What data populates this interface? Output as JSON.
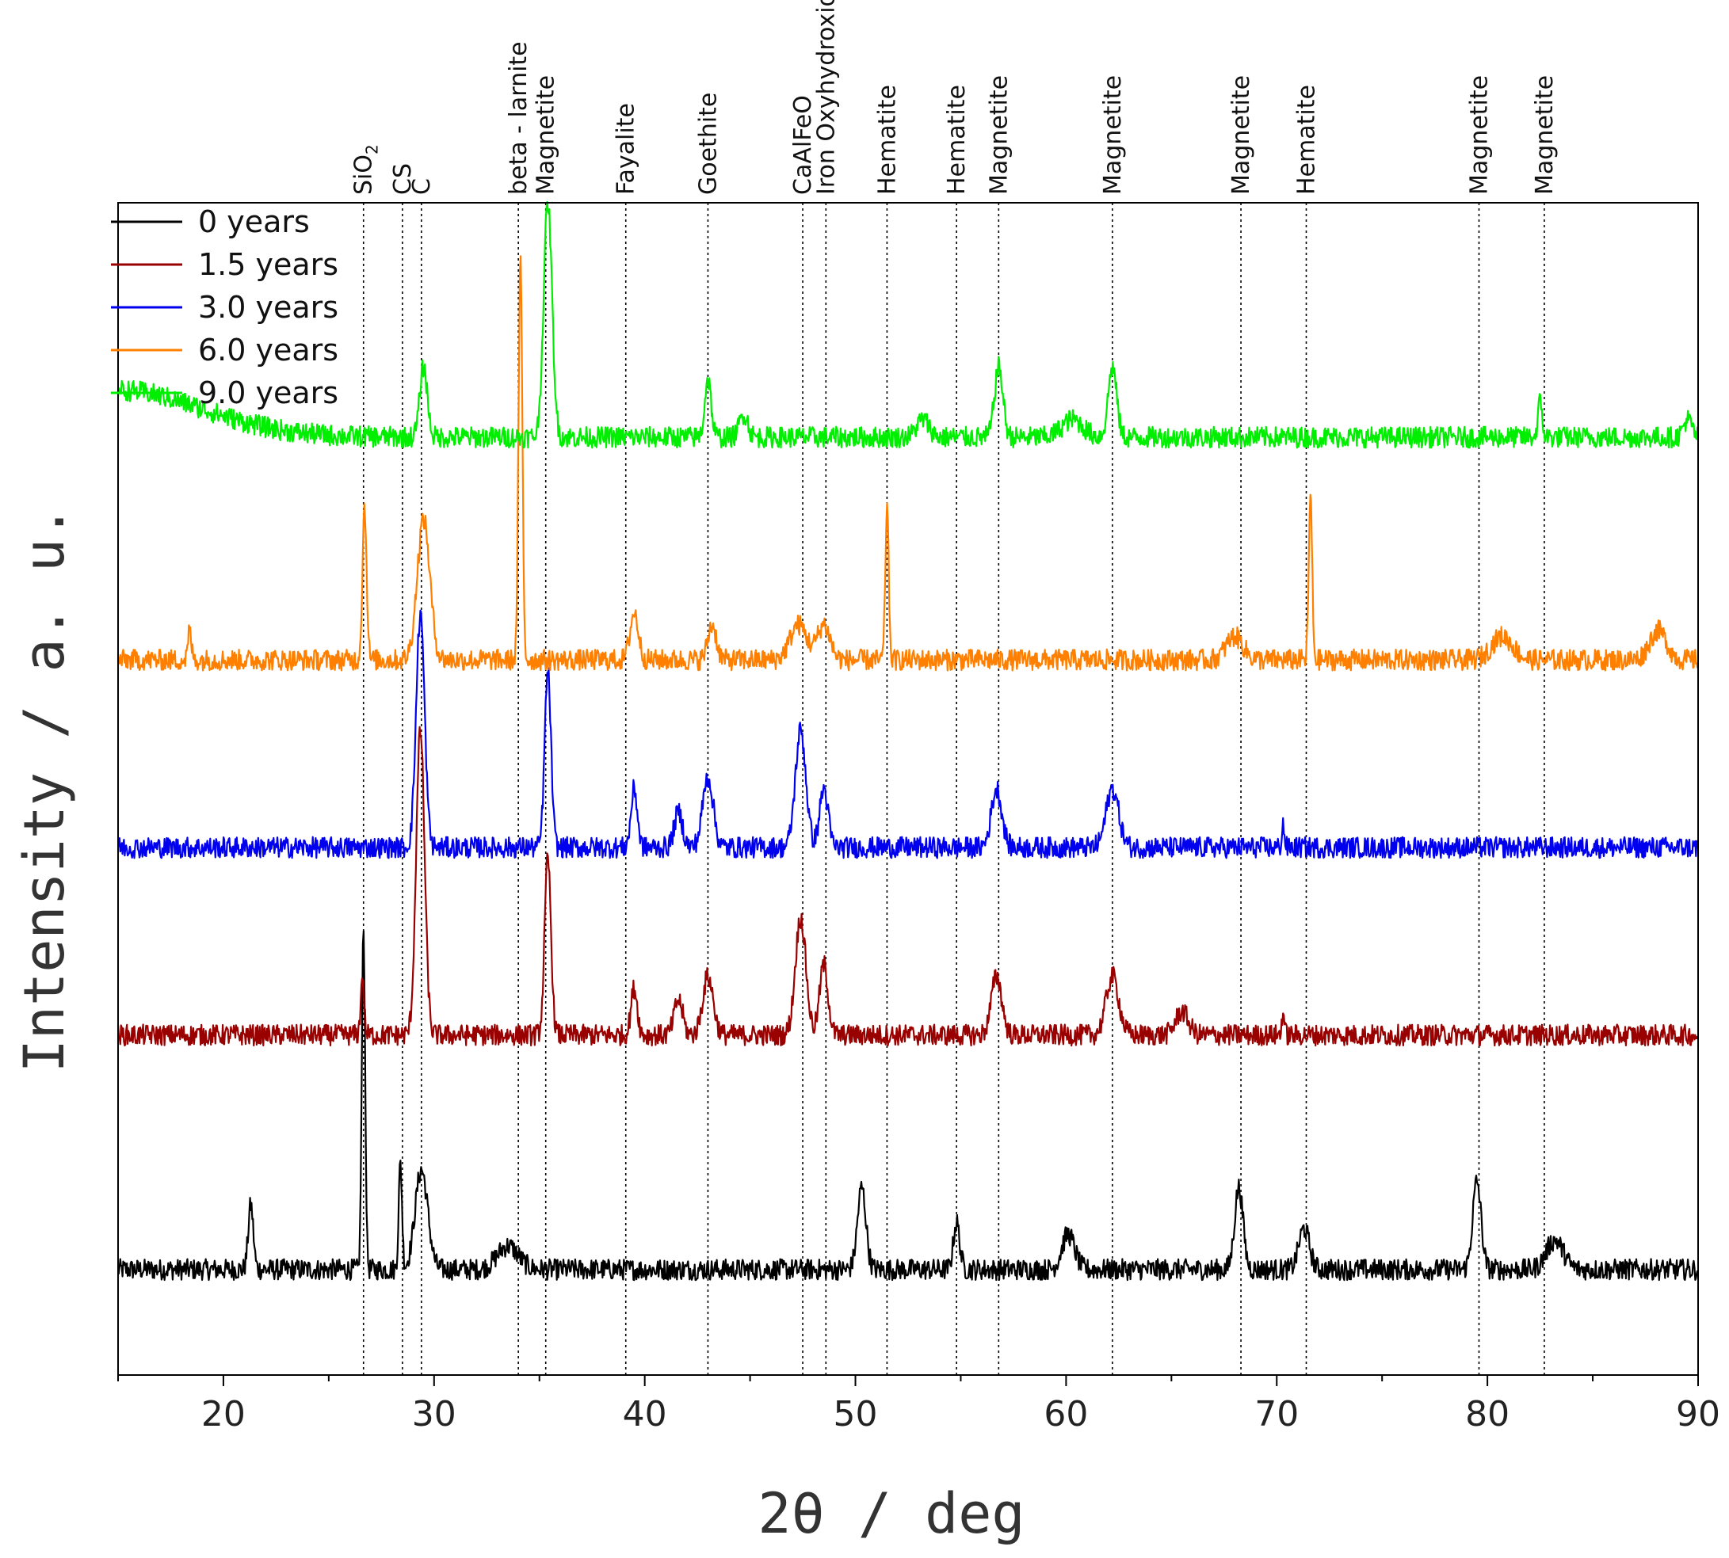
{
  "chart_data": {
    "type": "line",
    "title": "",
    "xlabel": "2θ / deg",
    "ylabel": "Intensity / a. u.",
    "xlim": [
      15,
      90
    ],
    "xticks": [
      20,
      30,
      40,
      50,
      60,
      70,
      80,
      90
    ],
    "yticks": [],
    "legend_position": "top-left",
    "series": [
      {
        "name": "0 years",
        "color": "#000000",
        "offset": 0.09,
        "noise": 0.009,
        "peaks": [
          [
            21.3,
            0.055,
            0.12
          ],
          [
            26.65,
            0.29,
            0.08
          ],
          [
            28.4,
            0.09,
            0.08
          ],
          [
            29.4,
            0.085,
            0.3
          ],
          [
            33.5,
            0.02,
            0.5
          ],
          [
            50.3,
            0.07,
            0.2
          ],
          [
            54.8,
            0.04,
            0.15
          ],
          [
            60.1,
            0.03,
            0.3
          ],
          [
            68.2,
            0.07,
            0.2
          ],
          [
            71.3,
            0.035,
            0.25
          ],
          [
            79.5,
            0.075,
            0.2
          ],
          [
            83.2,
            0.025,
            0.4
          ]
        ]
      },
      {
        "name": "1.5 years",
        "color": "#990000",
        "offset": 0.29,
        "noise": 0.009,
        "peaks": [
          [
            26.6,
            0.05,
            0.08
          ],
          [
            29.35,
            0.26,
            0.2
          ],
          [
            35.4,
            0.15,
            0.15
          ],
          [
            39.5,
            0.04,
            0.15
          ],
          [
            41.6,
            0.03,
            0.2
          ],
          [
            43.0,
            0.05,
            0.25
          ],
          [
            47.4,
            0.1,
            0.25
          ],
          [
            48.5,
            0.06,
            0.2
          ],
          [
            56.7,
            0.05,
            0.25
          ],
          [
            62.2,
            0.05,
            0.3
          ],
          [
            65.5,
            0.02,
            0.3
          ],
          [
            70.3,
            0.02,
            0.06
          ]
        ]
      },
      {
        "name": "3.0 years",
        "color": "#0000ee",
        "offset": 0.45,
        "noise": 0.009,
        "peaks": [
          [
            29.35,
            0.2,
            0.2
          ],
          [
            35.4,
            0.15,
            0.15
          ],
          [
            39.5,
            0.05,
            0.15
          ],
          [
            41.6,
            0.03,
            0.2
          ],
          [
            43.0,
            0.06,
            0.25
          ],
          [
            47.4,
            0.1,
            0.25
          ],
          [
            48.5,
            0.05,
            0.2
          ],
          [
            56.7,
            0.05,
            0.25
          ],
          [
            62.2,
            0.05,
            0.3
          ],
          [
            70.3,
            0.02,
            0.06
          ]
        ]
      },
      {
        "name": "6.0 years",
        "color": "#ff8000",
        "offset": 0.61,
        "noise": 0.009,
        "peaks": [
          [
            18.4,
            0.025,
            0.08
          ],
          [
            26.7,
            0.13,
            0.1
          ],
          [
            29.5,
            0.12,
            0.3
          ],
          [
            34.1,
            0.34,
            0.09
          ],
          [
            39.5,
            0.04,
            0.2
          ],
          [
            43.2,
            0.03,
            0.2
          ],
          [
            47.3,
            0.03,
            0.4
          ],
          [
            48.5,
            0.03,
            0.3
          ],
          [
            51.5,
            0.13,
            0.08
          ],
          [
            68.0,
            0.02,
            0.4
          ],
          [
            71.6,
            0.14,
            0.08
          ],
          [
            80.7,
            0.02,
            0.5
          ],
          [
            88.1,
            0.025,
            0.4
          ]
        ]
      },
      {
        "name": "9.0 years",
        "color": "#00ee00",
        "offset": 0.8,
        "noise": 0.009,
        "peaks": [
          [
            15.0,
            0.04,
            4.0
          ],
          [
            29.5,
            0.06,
            0.18
          ],
          [
            35.4,
            0.2,
            0.2
          ],
          [
            43.0,
            0.05,
            0.15
          ],
          [
            44.7,
            0.02,
            0.2
          ],
          [
            53.2,
            0.015,
            0.3
          ],
          [
            56.8,
            0.06,
            0.2
          ],
          [
            60.3,
            0.015,
            0.5
          ],
          [
            62.2,
            0.06,
            0.2
          ],
          [
            82.5,
            0.03,
            0.1
          ],
          [
            89.5,
            0.015,
            0.2
          ]
        ]
      }
    ],
    "phase_lines": [
      {
        "x": 26.65,
        "label": "SiO",
        "sub": "2"
      },
      {
        "x": 28.5,
        "label": "CS",
        "sub": ""
      },
      {
        "x": 29.4,
        "label": "C",
        "sub": ""
      },
      {
        "x": 34.0,
        "label": "beta - larnite",
        "sub": ""
      },
      {
        "x": 35.3,
        "label": "Magnetite",
        "sub": ""
      },
      {
        "x": 39.1,
        "label": "Fayalite",
        "sub": ""
      },
      {
        "x": 43.0,
        "label": "Goethite",
        "sub": ""
      },
      {
        "x": 47.5,
        "label": "CaAlFeO",
        "sub": ""
      },
      {
        "x": 48.6,
        "label": "Iron Oxyhydroxid",
        "sub": ""
      },
      {
        "x": 51.5,
        "label": "Hematite",
        "sub": ""
      },
      {
        "x": 54.8,
        "label": "Hematite",
        "sub": ""
      },
      {
        "x": 56.8,
        "label": "Magnetite",
        "sub": ""
      },
      {
        "x": 62.2,
        "label": "Magnetite",
        "sub": ""
      },
      {
        "x": 68.3,
        "label": "Magnetite",
        "sub": ""
      },
      {
        "x": 71.4,
        "label": "Hematite",
        "sub": ""
      },
      {
        "x": 79.6,
        "label": "Magnetite",
        "sub": ""
      },
      {
        "x": 82.7,
        "label": "Magnetite",
        "sub": ""
      }
    ]
  }
}
